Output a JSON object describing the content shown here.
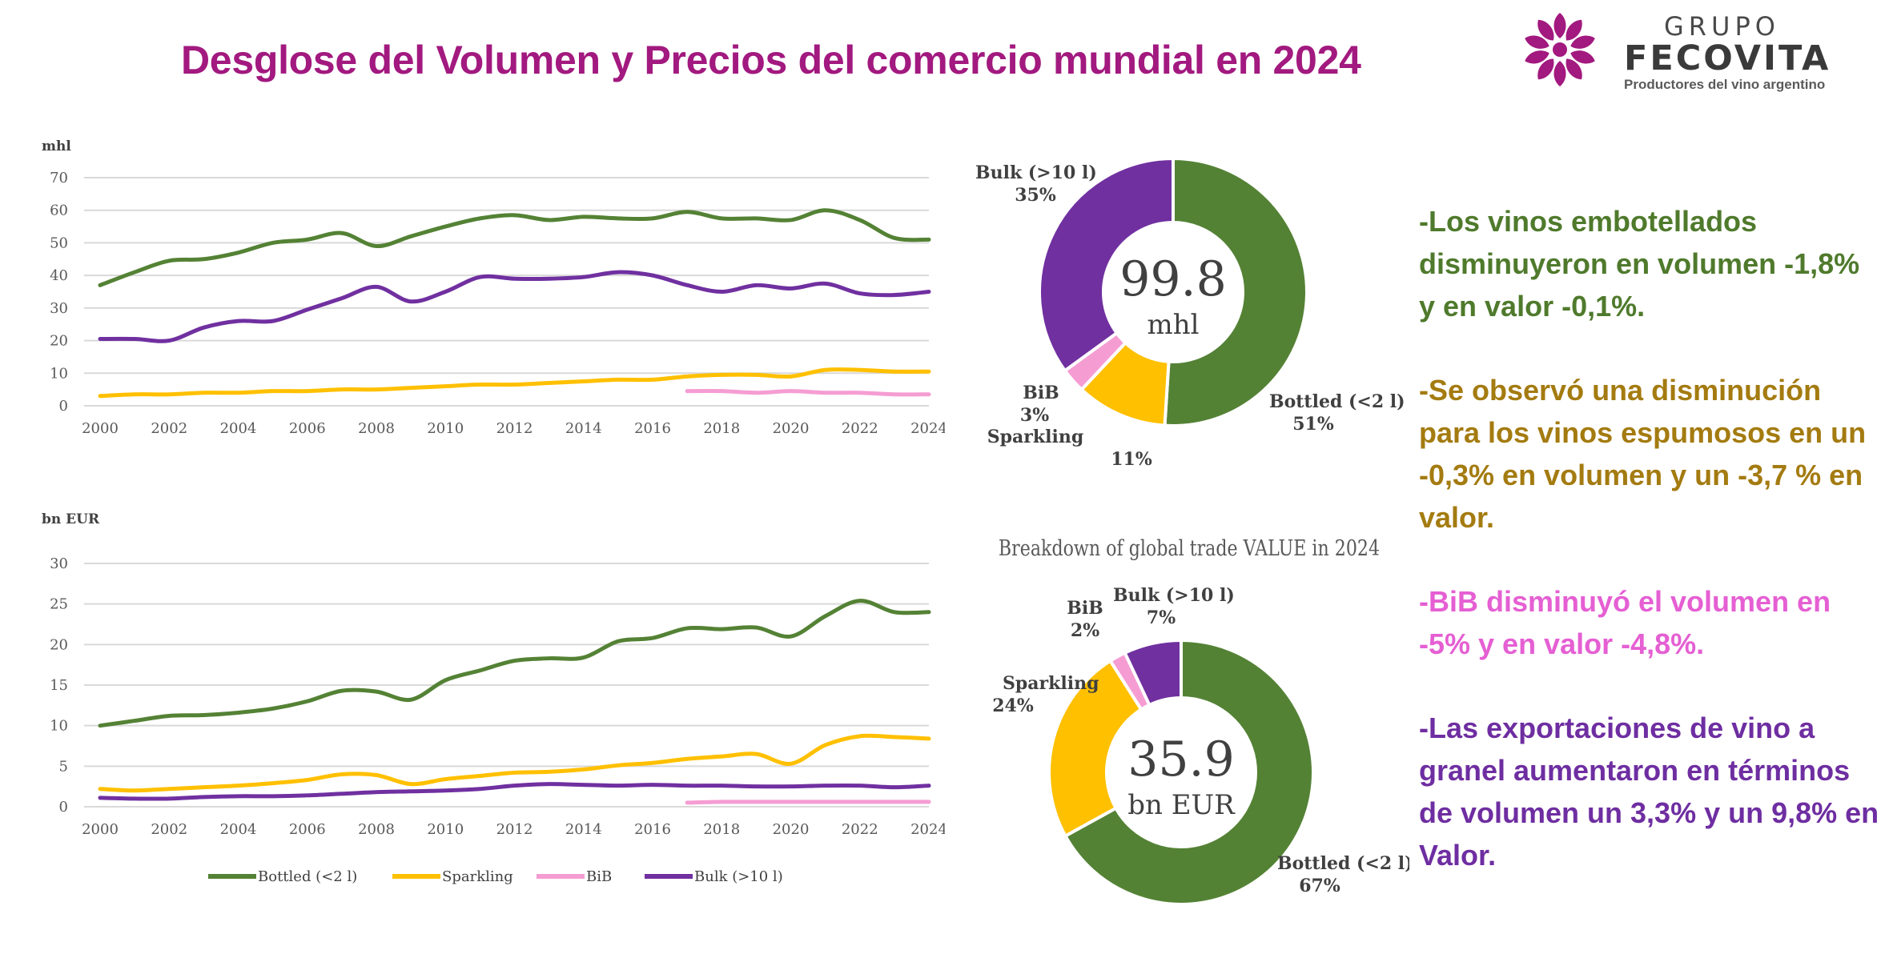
{
  "title": "Desglose del Volumen y Precios del comercio mundial en 2024",
  "logo": {
    "grupo": "GRUPO",
    "name": "FECOVITA",
    "tagline": "Productores del vino argentino",
    "icon": "fecovita-grape-flower-logo",
    "color": "#a2197f"
  },
  "colors": {
    "bottled": "#548235",
    "sparkling": "#ffc000",
    "bib": "#f59dd3",
    "bulk": "#7030a0",
    "grid": "#d9d9d9",
    "axis_text": "#595959"
  },
  "chart_data": [
    {
      "type": "line",
      "ylabel": "mhl",
      "ylim": [
        0,
        70
      ],
      "yticks": [
        "0",
        "10",
        "20",
        "30",
        "40",
        "50",
        "60",
        "70"
      ],
      "x_ticks": [
        "2000",
        "2002",
        "2004",
        "2006",
        "2008",
        "2010",
        "2012",
        "2014",
        "2016",
        "2018",
        "2020",
        "2022",
        "2024"
      ],
      "grid": true,
      "series": [
        {
          "name": "Bottled (<2 l)",
          "color": "#548235",
          "x": [
            2000,
            2001,
            2002,
            2003,
            2004,
            2005,
            2006,
            2007,
            2008,
            2009,
            2010,
            2011,
            2012,
            2013,
            2014,
            2015,
            2016,
            2017,
            2018,
            2019,
            2020,
            2021,
            2022,
            2023,
            2024
          ],
          "values": [
            37,
            41,
            44.5,
            45,
            47,
            50,
            51,
            53,
            49,
            52,
            55,
            57.5,
            58.5,
            57,
            58,
            57.5,
            57.5,
            59.5,
            57.5,
            57.5,
            57,
            60,
            57,
            51.5,
            51
          ]
        },
        {
          "name": "Sparkling",
          "color": "#ffc000",
          "x": [
            2000,
            2001,
            2002,
            2003,
            2004,
            2005,
            2006,
            2007,
            2008,
            2009,
            2010,
            2011,
            2012,
            2013,
            2014,
            2015,
            2016,
            2017,
            2018,
            2019,
            2020,
            2021,
            2022,
            2023,
            2024
          ],
          "values": [
            3,
            3.5,
            3.5,
            4,
            4,
            4.5,
            4.5,
            5,
            5,
            5.5,
            6,
            6.5,
            6.5,
            7,
            7.5,
            8,
            8,
            9,
            9.5,
            9.5,
            9,
            11,
            11,
            10.5,
            10.5
          ]
        },
        {
          "name": "BiB",
          "color": "#f59dd3",
          "x": [
            2017,
            2018,
            2019,
            2020,
            2021,
            2022,
            2023,
            2024
          ],
          "values": [
            4.5,
            4.5,
            4,
            4.5,
            4,
            4,
            3.5,
            3.5
          ]
        },
        {
          "name": "Bulk (>10 l)",
          "color": "#7030a0",
          "x": [
            2000,
            2001,
            2002,
            2003,
            2004,
            2005,
            2006,
            2007,
            2008,
            2009,
            2010,
            2011,
            2012,
            2013,
            2014,
            2015,
            2016,
            2017,
            2018,
            2019,
            2020,
            2021,
            2022,
            2023,
            2024
          ],
          "values": [
            20.5,
            20.5,
            20,
            24,
            26,
            26,
            29.5,
            33,
            36.5,
            32,
            35,
            39.5,
            39,
            39,
            39.5,
            41,
            40,
            37,
            35,
            37,
            36,
            37.5,
            34.5,
            34,
            35
          ]
        }
      ]
    },
    {
      "type": "line",
      "ylabel": "bn EUR",
      "ylim": [
        0,
        30
      ],
      "yticks": [
        "0",
        "5",
        "10",
        "15",
        "20",
        "25",
        "30"
      ],
      "x_ticks": [
        "2000",
        "2002",
        "2004",
        "2006",
        "2008",
        "2010",
        "2012",
        "2014",
        "2016",
        "2018",
        "2020",
        "2022",
        "2024"
      ],
      "grid": true,
      "legend": "bottom",
      "series": [
        {
          "name": "Bottled (<2 l)",
          "color": "#548235",
          "x": [
            2000,
            2001,
            2002,
            2003,
            2004,
            2005,
            2006,
            2007,
            2008,
            2009,
            2010,
            2011,
            2012,
            2013,
            2014,
            2015,
            2016,
            2017,
            2018,
            2019,
            2020,
            2021,
            2022,
            2023,
            2024
          ],
          "values": [
            10,
            10.6,
            11.2,
            11.3,
            11.6,
            12.1,
            13,
            14.3,
            14.2,
            13.2,
            15.6,
            16.8,
            18,
            18.3,
            18.4,
            20.4,
            20.8,
            22,
            21.9,
            22.1,
            21,
            23.5,
            25.4,
            24,
            24
          ]
        },
        {
          "name": "Sparkling",
          "color": "#ffc000",
          "x": [
            2000,
            2001,
            2002,
            2003,
            2004,
            2005,
            2006,
            2007,
            2008,
            2009,
            2010,
            2011,
            2012,
            2013,
            2014,
            2015,
            2016,
            2017,
            2018,
            2019,
            2020,
            2021,
            2022,
            2023,
            2024
          ],
          "values": [
            2.2,
            2,
            2.2,
            2.4,
            2.6,
            2.9,
            3.3,
            4,
            3.9,
            2.8,
            3.4,
            3.8,
            4.2,
            4.3,
            4.6,
            5.1,
            5.4,
            5.9,
            6.2,
            6.5,
            5.3,
            7.6,
            8.7,
            8.6,
            8.4
          ]
        },
        {
          "name": "BiB",
          "color": "#f59dd3",
          "x": [
            2017,
            2018,
            2019,
            2020,
            2021,
            2022,
            2023,
            2024
          ],
          "values": [
            0.5,
            0.6,
            0.6,
            0.6,
            0.6,
            0.6,
            0.6,
            0.6
          ]
        },
        {
          "name": "Bulk (>10 l)",
          "color": "#7030a0",
          "x": [
            2000,
            2001,
            2002,
            2003,
            2004,
            2005,
            2006,
            2007,
            2008,
            2009,
            2010,
            2011,
            2012,
            2013,
            2014,
            2015,
            2016,
            2017,
            2018,
            2019,
            2020,
            2021,
            2022,
            2023,
            2024
          ],
          "values": [
            1.1,
            1,
            1,
            1.2,
            1.3,
            1.3,
            1.4,
            1.6,
            1.8,
            1.9,
            2,
            2.2,
            2.6,
            2.8,
            2.7,
            2.6,
            2.7,
            2.6,
            2.6,
            2.5,
            2.5,
            2.6,
            2.6,
            2.4,
            2.6
          ]
        }
      ]
    },
    {
      "type": "pie",
      "variant": "donut",
      "center_value": "99.8",
      "center_unit": "mhl",
      "slices": [
        {
          "name": "Bottled (<2 l)",
          "percent_label": "51%",
          "value": 51,
          "color": "#548235"
        },
        {
          "name": "Sparkling",
          "percent_label": "11%",
          "value": 11,
          "color": "#ffc000"
        },
        {
          "name": "BiB",
          "percent_label": "3%",
          "value": 3,
          "color": "#f59dd3"
        },
        {
          "name": "Bulk (>10 l)",
          "percent_label": "35%",
          "value": 35,
          "color": "#7030a0"
        }
      ]
    },
    {
      "type": "pie",
      "variant": "donut",
      "title": "Breakdown of global trade VALUE in 2024",
      "center_value": "35.9",
      "center_unit": "bn EUR",
      "slices": [
        {
          "name": "Bottled (<2 l)",
          "percent_label": "67%",
          "value": 67,
          "color": "#548235"
        },
        {
          "name": "Sparkling",
          "percent_label": "24%",
          "value": 24,
          "color": "#ffc000"
        },
        {
          "name": "BiB",
          "percent_label": "2%",
          "value": 2,
          "color": "#f59dd3"
        },
        {
          "name": "Bulk (>10 l)",
          "percent_label": "7%",
          "value": 7,
          "color": "#7030a0"
        }
      ]
    }
  ],
  "notes": [
    {
      "text": "-Los vinos embotellados disminuyeron en volumen -1,8% y en valor -0,1%.",
      "color": "#4f7a2c"
    },
    {
      "text": "-Se observó una disminución para los vinos espumosos en un -0,3% en volumen y un -3,7 % en valor.",
      "color": "#a47b10"
    },
    {
      "text": "-BiB disminuyó el volumen en -5% y en valor -4,8%.",
      "color": "#e55fd3"
    },
    {
      "text": "-Las exportaciones de vino a granel aumentaron en términos de volumen un 3,3% y un 9,8% en Valor.",
      "color": "#6e2ea1"
    }
  ]
}
